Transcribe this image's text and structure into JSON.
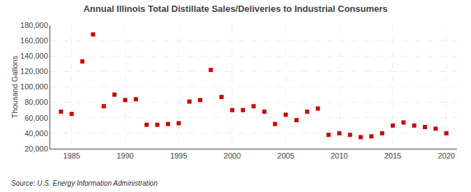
{
  "chart_data": {
    "type": "scatter",
    "title": "Annual Illinois Total Distillate Sales/Deliveries to Industrial Consumers",
    "y_label": "Thousand Gallons",
    "annotations": [
      "Source: U.S. Energy Information Administration"
    ],
    "x": [
      1984,
      1985,
      1986,
      1987,
      1988,
      1989,
      1990,
      1991,
      1992,
      1993,
      1994,
      1995,
      1996,
      1997,
      1998,
      1999,
      2000,
      2001,
      2002,
      2003,
      2004,
      2005,
      2006,
      2007,
      2008,
      2009,
      2010,
      2011,
      2012,
      2013,
      2014,
      2015,
      2016,
      2017,
      2018,
      2019,
      2020
    ],
    "values": [
      68000,
      65000,
      133000,
      168000,
      75000,
      90000,
      83000,
      84000,
      51000,
      51000,
      52000,
      53000,
      81000,
      83000,
      122000,
      87000,
      70000,
      70000,
      75000,
      68000,
      52000,
      64000,
      57000,
      68000,
      72000,
      38000,
      40000,
      38000,
      35000,
      36000,
      40000,
      50000,
      54000,
      50000,
      48000,
      46000,
      40000
    ],
    "color": "#cc0000",
    "marker": "square",
    "xlim": [
      1983,
      2021
    ],
    "xticks": [
      1985,
      1990,
      1995,
      2000,
      2005,
      2010,
      2015,
      2020
    ],
    "ylim": [
      20000,
      180000
    ],
    "yticks": [
      {
        "value": 20000,
        "label": "20,000"
      },
      {
        "value": 40000,
        "label": "40,000"
      },
      {
        "value": 60000,
        "label": "60,000"
      },
      {
        "value": 80000,
        "label": "80,000"
      },
      {
        "value": 100000,
        "label": "100,000"
      },
      {
        "value": 120000,
        "label": "120,000"
      },
      {
        "value": 140000,
        "label": "140,000"
      },
      {
        "value": 160000,
        "label": "160,000"
      },
      {
        "value": 180000,
        "label": "180,000"
      }
    ],
    "grid": true
  }
}
